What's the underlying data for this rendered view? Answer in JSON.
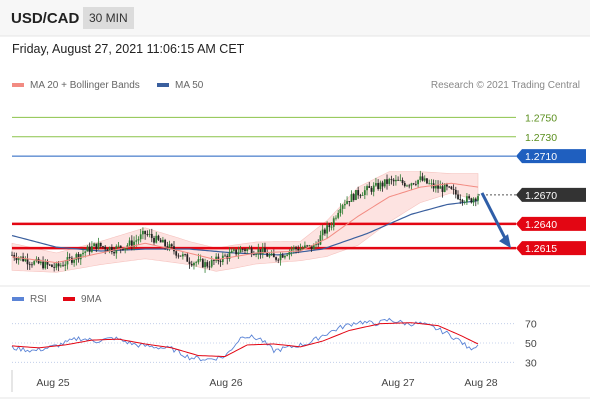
{
  "header": {
    "symbol": "USD/CAD",
    "timeframe": "30 MIN"
  },
  "timestamp": "Friday, August 27, 2021 11:06:15 AM CET",
  "legend": {
    "ma20_label": "MA 20 + Bollinger Bands",
    "ma50_label": "MA 50"
  },
  "copyright": "Research © 2021 Trading Central",
  "rsi_legend": {
    "rsi_label": "RSI",
    "ma_label": "9MA"
  },
  "colors": {
    "up_candle": "#2e7d32",
    "down_candle": "#222222",
    "ma20": "#f28b82",
    "bands_fill": "#fde3e1",
    "ma50": "#3a5f9e",
    "support": "#e30613",
    "resistance_green": "#8bc34a",
    "resistance_blue": "#1f5fbf",
    "rsi": "#5b84d6",
    "rsi_ma": "#e30613",
    "arrow": "#2f5ea8"
  },
  "chart_data": [
    {
      "type": "candlestick",
      "title": "USD/CAD 30 MIN",
      "x_ticks": [
        "Aug 25",
        "Aug 26",
        "Aug 27",
        "Aug 28"
      ],
      "ylim": [
        1.258,
        1.2768
      ],
      "levels": [
        {
          "value": 1.275,
          "label": "1.2750",
          "style": "green-thin"
        },
        {
          "value": 1.273,
          "label": "1.2730",
          "style": "green-thin"
        },
        {
          "value": 1.271,
          "label": "1.2710",
          "style": "blue"
        },
        {
          "value": 1.267,
          "label": "1.2670",
          "style": "last-price"
        },
        {
          "value": 1.264,
          "label": "1.2640",
          "style": "red"
        },
        {
          "value": 1.2615,
          "label": "1.2615",
          "style": "red"
        }
      ],
      "price_anchors": [
        [
          0,
          1.2608
        ],
        [
          10,
          1.26
        ],
        [
          20,
          1.2595
        ],
        [
          30,
          1.2608
        ],
        [
          38,
          1.2618
        ],
        [
          46,
          1.2614
        ],
        [
          54,
          1.262
        ],
        [
          60,
          1.263
        ],
        [
          66,
          1.2622
        ],
        [
          72,
          1.2614
        ],
        [
          80,
          1.2602
        ],
        [
          88,
          1.2598
        ],
        [
          96,
          1.2606
        ],
        [
          104,
          1.2614
        ],
        [
          112,
          1.2612
        ],
        [
          118,
          1.2604
        ],
        [
          126,
          1.2614
        ],
        [
          136,
          1.2616
        ],
        [
          140,
          1.263
        ],
        [
          144,
          1.264
        ],
        [
          148,
          1.266
        ],
        [
          156,
          1.2672
        ],
        [
          164,
          1.2678
        ],
        [
          170,
          1.2684
        ],
        [
          178,
          1.2682
        ],
        [
          184,
          1.2686
        ],
        [
          190,
          1.2678
        ],
        [
          196,
          1.2676
        ],
        [
          202,
          1.2668
        ],
        [
          206,
          1.2664
        ],
        [
          210,
          1.267
        ]
      ],
      "ma20_anchors": [
        [
          0,
          1.2606
        ],
        [
          20,
          1.26
        ],
        [
          40,
          1.261
        ],
        [
          60,
          1.262
        ],
        [
          76,
          1.2612
        ],
        [
          92,
          1.2603
        ],
        [
          110,
          1.261
        ],
        [
          130,
          1.2612
        ],
        [
          142,
          1.2625
        ],
        [
          156,
          1.2648
        ],
        [
          170,
          1.2668
        ],
        [
          184,
          1.2678
        ],
        [
          198,
          1.2682
        ],
        [
          210,
          1.2678
        ]
      ],
      "band_halfwidth_anchors": [
        [
          0,
          0.0014
        ],
        [
          20,
          0.001
        ],
        [
          40,
          0.0012
        ],
        [
          60,
          0.0016
        ],
        [
          80,
          0.0012
        ],
        [
          100,
          0.0012
        ],
        [
          130,
          0.001
        ],
        [
          144,
          0.002
        ],
        [
          156,
          0.003
        ],
        [
          170,
          0.0026
        ],
        [
          184,
          0.0016
        ],
        [
          198,
          0.001
        ],
        [
          210,
          0.0014
        ]
      ],
      "ma50_anchors": [
        [
          0,
          1.2628
        ],
        [
          20,
          1.2616
        ],
        [
          40,
          1.2612
        ],
        [
          60,
          1.2614
        ],
        [
          80,
          1.2614
        ],
        [
          100,
          1.261
        ],
        [
          120,
          1.2608
        ],
        [
          140,
          1.2614
        ],
        [
          160,
          1.263
        ],
        [
          180,
          1.265
        ],
        [
          196,
          1.266
        ],
        [
          210,
          1.2664
        ]
      ],
      "forecast_arrow": {
        "from": 1.2672,
        "to": 1.2615
      }
    },
    {
      "type": "line",
      "title": "RSI",
      "y_ticks": [
        70,
        50,
        30
      ],
      "ylim": [
        20,
        80
      ],
      "series": [
        {
          "name": "RSI",
          "anchors": [
            [
              0,
              45
            ],
            [
              10,
              42
            ],
            [
              20,
              47
            ],
            [
              30,
              55
            ],
            [
              38,
              52
            ],
            [
              46,
              55
            ],
            [
              56,
              48
            ],
            [
              64,
              46
            ],
            [
              72,
              44
            ],
            [
              80,
              35
            ],
            [
              88,
              33
            ],
            [
              96,
              36
            ],
            [
              104,
              58
            ],
            [
              112,
              54
            ],
            [
              118,
              42
            ],
            [
              126,
              46
            ],
            [
              134,
              50
            ],
            [
              140,
              58
            ],
            [
              148,
              66
            ],
            [
              156,
              72
            ],
            [
              164,
              70
            ],
            [
              170,
              74
            ],
            [
              178,
              70
            ],
            [
              184,
              70
            ],
            [
              190,
              66
            ],
            [
              196,
              60
            ],
            [
              202,
              52
            ],
            [
              206,
              44
            ],
            [
              210,
              48
            ]
          ]
        },
        {
          "name": "9MA",
          "anchors": [
            [
              0,
              47
            ],
            [
              12,
              45
            ],
            [
              24,
              48
            ],
            [
              36,
              53
            ],
            [
              48,
              54
            ],
            [
              60,
              49
            ],
            [
              72,
              45
            ],
            [
              84,
              37
            ],
            [
              96,
              36
            ],
            [
              106,
              48
            ],
            [
              118,
              49
            ],
            [
              130,
              46
            ],
            [
              140,
              52
            ],
            [
              152,
              63
            ],
            [
              166,
              70
            ],
            [
              180,
              71
            ],
            [
              192,
              68
            ],
            [
              202,
              58
            ],
            [
              210,
              49
            ]
          ]
        }
      ]
    }
  ]
}
